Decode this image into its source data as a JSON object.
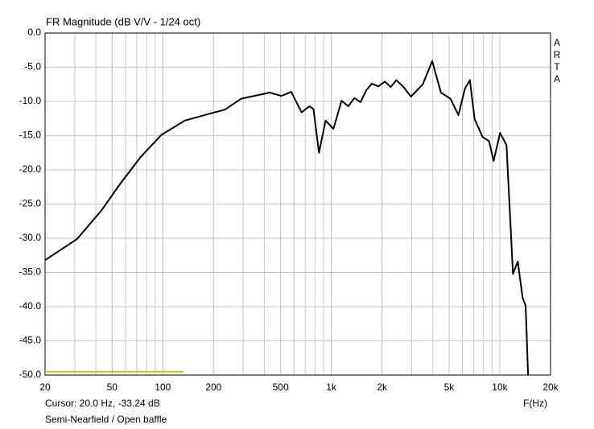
{
  "chart_data": {
    "type": "line",
    "title": "FR Magnitude (dB V/V - 1/24 oct)",
    "brand": "ARTA",
    "cursor": "Cursor: 20.0 Hz, -33.24 dB",
    "note": "Semi-Nearfield / Open baffle",
    "x_label": "F(Hz)",
    "xscale": "log",
    "grid": true,
    "xlim": [
      20,
      20000
    ],
    "ylim": [
      -50,
      0
    ],
    "xticks": [
      20,
      50,
      100,
      200,
      500,
      {
        "value": 1000,
        "label": "1k"
      },
      {
        "value": 2000,
        "label": "2k"
      },
      {
        "value": 5000,
        "label": "5k"
      },
      {
        "value": 10000,
        "label": "10k"
      },
      {
        "value": 20000,
        "label": "20k"
      }
    ],
    "yticks": [
      {
        "value": 0,
        "label": "0.0"
      },
      {
        "value": -5,
        "label": "-5.0"
      },
      {
        "value": -10,
        "label": "-10.0"
      },
      {
        "value": -15,
        "label": "-15.0"
      },
      {
        "value": -20,
        "label": "-20.0"
      },
      {
        "value": -25,
        "label": "-25.0"
      },
      {
        "value": -30,
        "label": "-30.0"
      },
      {
        "value": -35,
        "label": "-35.0"
      },
      {
        "value": -40,
        "label": "-40.0"
      },
      {
        "value": -45,
        "label": "-45.0"
      },
      {
        "value": -50,
        "label": "-50.0"
      }
    ],
    "series": [
      {
        "color": "#000000",
        "x": [
          20,
          31,
          43,
          56,
          74,
          98,
          135,
          189,
          234,
          292,
          363,
          430,
          506,
          578,
          666,
          740,
          783,
          845,
          924,
          1030,
          1150,
          1260,
          1370,
          1490,
          1610,
          1740,
          1900,
          2080,
          2250,
          2430,
          2660,
          2970,
          3490,
          3970,
          4470,
          5090,
          5680,
          6210,
          6640,
          7090,
          7900,
          8630,
          9190,
          10040,
          10960,
          11960,
          12780,
          13650,
          14240,
          14710
        ],
        "values": [
          -33.2,
          -30.1,
          -26.0,
          -22.0,
          -18.1,
          -14.9,
          -12.8,
          -11.8,
          -11.2,
          -9.6,
          -9.1,
          -8.7,
          -9.2,
          -8.6,
          -11.6,
          -10.7,
          -11.1,
          -17.5,
          -12.8,
          -14.0,
          -9.9,
          -10.7,
          -9.5,
          -10.1,
          -8.4,
          -7.4,
          -7.8,
          -7.1,
          -7.9,
          -6.9,
          -7.8,
          -9.3,
          -7.5,
          -4.1,
          -8.7,
          -9.6,
          -12.0,
          -8.1,
          -6.9,
          -12.6,
          -15.2,
          -15.8,
          -18.7,
          -14.6,
          -16.4,
          -35.2,
          -33.4,
          -38.7,
          -39.9,
          -50
        ]
      },
      {
        "color": "#c8c800",
        "x": [
          20,
          133
        ],
        "values": [
          -49.5,
          -49.5
        ]
      }
    ]
  }
}
